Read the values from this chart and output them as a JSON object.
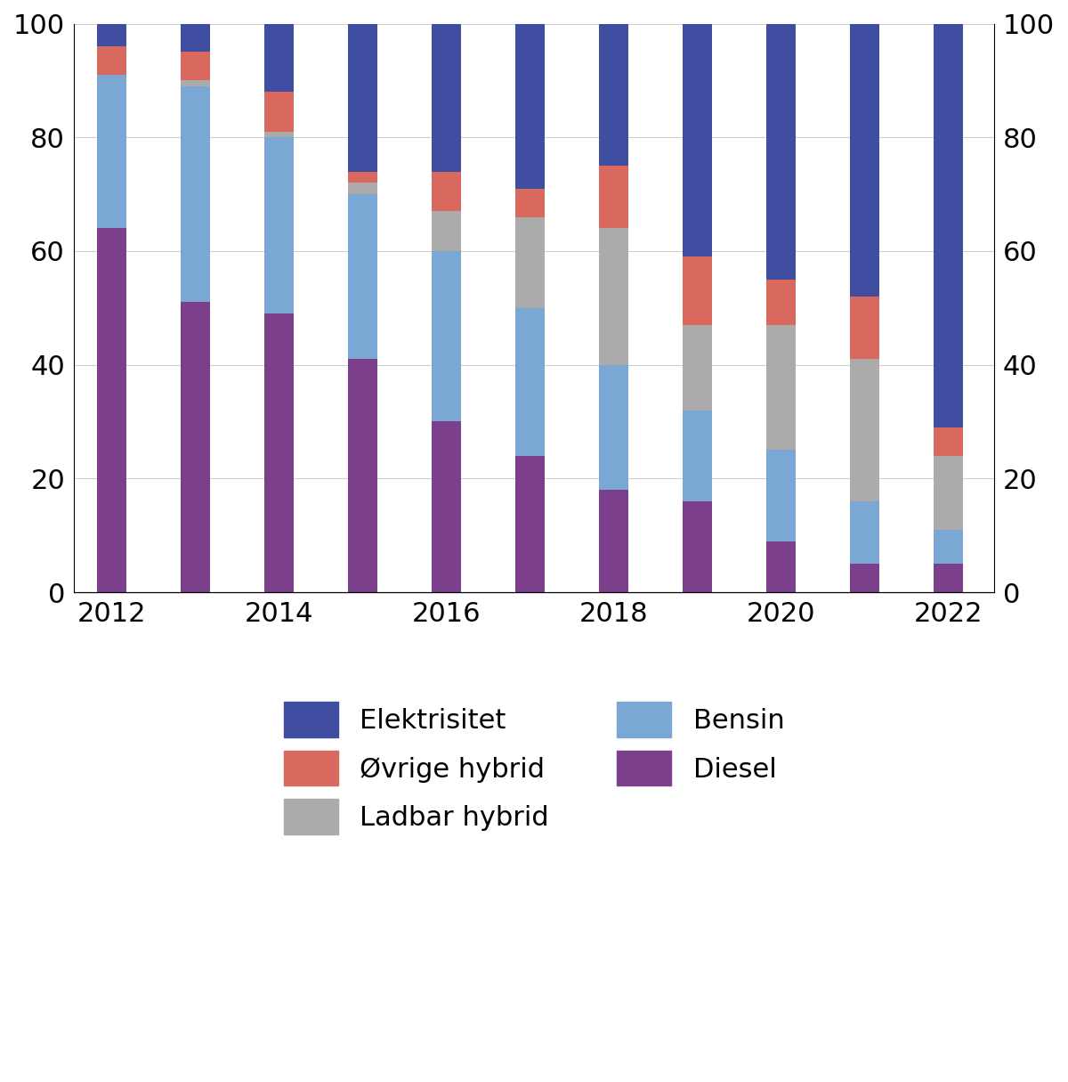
{
  "years": [
    2012,
    2013,
    2014,
    2015,
    2016,
    2017,
    2018,
    2019,
    2020,
    2021,
    2022
  ],
  "series": {
    "Diesel": [
      64,
      51,
      49,
      41,
      30,
      24,
      18,
      16,
      9,
      5,
      5
    ],
    "Bensin": [
      27,
      38,
      31,
      29,
      30,
      26,
      22,
      16,
      16,
      11,
      6
    ],
    "Ladbar hybrid": [
      0,
      1,
      1,
      2,
      7,
      16,
      24,
      15,
      22,
      25,
      13
    ],
    "Øvrige hybrid": [
      5,
      5,
      7,
      2,
      7,
      5,
      11,
      12,
      8,
      11,
      5
    ],
    "Elektrisitet": [
      4,
      5,
      12,
      26,
      26,
      29,
      25,
      41,
      45,
      48,
      71
    ]
  },
  "colors": {
    "Elektrisitet": "#3F4EA0",
    "Ladbar hybrid": "#ABABAB",
    "Øvrige hybrid": "#D9695F",
    "Bensin": "#7BA7D4",
    "Diesel": "#7B3F8C"
  },
  "ylim": [
    0,
    100
  ],
  "background_color": "#ffffff",
  "bar_width": 0.35,
  "stack_order": [
    "Diesel",
    "Bensin",
    "Ladbar hybrid",
    "Øvrige hybrid",
    "Elektrisitet"
  ],
  "legend_left": [
    "Elektrisitet",
    "Ladbar hybrid",
    "Diesel"
  ],
  "legend_right": [
    "Øvrige hybrid",
    "Bensin"
  ],
  "xtick_labels": [
    "2012",
    "2014",
    "2016",
    "2018",
    "2020",
    "2022"
  ],
  "ytick_labels": [
    "0",
    "20",
    "40",
    "60",
    "80",
    "100"
  ],
  "ytick_vals": [
    0,
    20,
    40,
    60,
    80,
    100
  ],
  "xtick_fontsize": 22,
  "ytick_fontsize": 22,
  "legend_fontsize": 22
}
